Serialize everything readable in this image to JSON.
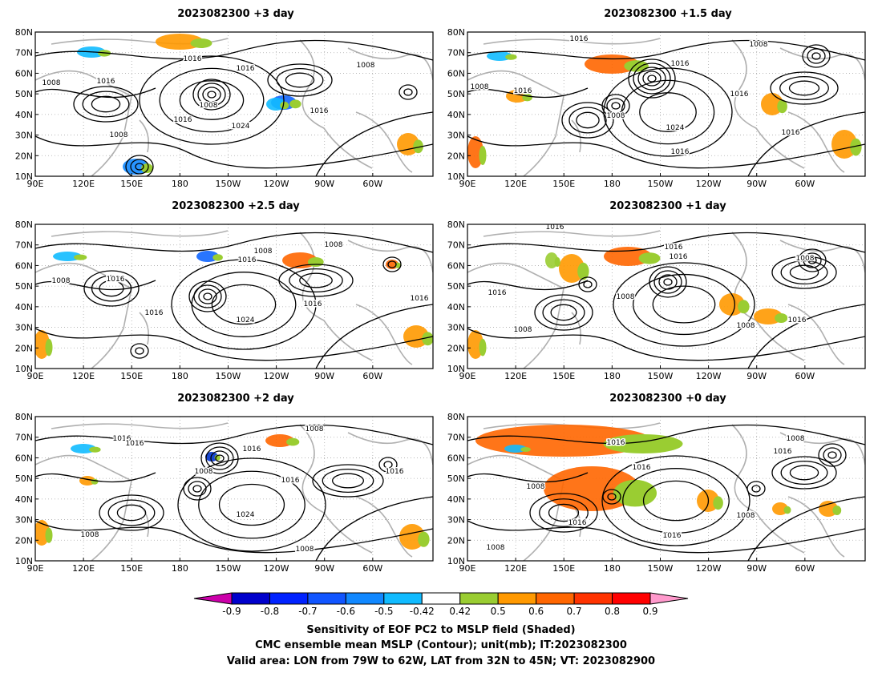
{
  "panels": [
    {
      "title": "2023082300 +3 day",
      "labels": [
        [
          "1016",
          240,
          76
        ],
        [
          "1016",
          132,
          104
        ],
        [
          "1008",
          64,
          106
        ],
        [
          "1016",
          306,
          88
        ],
        [
          "1008",
          456,
          84
        ],
        [
          "1008",
          260,
          134
        ],
        [
          "1016",
          228,
          152
        ],
        [
          "1024",
          300,
          160
        ],
        [
          "1016",
          398,
          141
        ],
        [
          "1008",
          148,
          171
        ]
      ]
    },
    {
      "title": "2023082300 +1.5 day",
      "labels": [
        [
          "1016",
          722,
          51
        ],
        [
          "1008",
          946,
          58
        ],
        [
          "1016",
          848,
          82
        ],
        [
          "1008",
          598,
          111
        ],
        [
          "1016",
          652,
          116
        ],
        [
          "1016",
          922,
          120
        ],
        [
          "1008",
          768,
          147
        ],
        [
          "1024",
          842,
          162
        ],
        [
          "1016",
          986,
          168
        ],
        [
          "1016",
          848,
          192
        ]
      ]
    },
    {
      "title": "2023082300 +2.5 day",
      "labels": [
        [
          "1008",
          328,
          316
        ],
        [
          "1016",
          308,
          327
        ],
        [
          "1008",
          416,
          308
        ],
        [
          "1016",
          144,
          351
        ],
        [
          "1008",
          76,
          353
        ],
        [
          "1016",
          192,
          393
        ],
        [
          "1016",
          390,
          382
        ],
        [
          "1024",
          306,
          402
        ],
        [
          "1016",
          523,
          375
        ]
      ]
    },
    {
      "title": "2023082300 +1 day",
      "labels": [
        [
          "1016",
          692,
          286
        ],
        [
          "1016",
          840,
          311
        ],
        [
          "1016",
          846,
          323
        ],
        [
          "1008",
          1004,
          325
        ],
        [
          "1016",
          620,
          368
        ],
        [
          "1008",
          780,
          373
        ],
        [
          "1008",
          652,
          414
        ],
        [
          "1008",
          930,
          409
        ],
        [
          "1016",
          994,
          402
        ]
      ]
    },
    {
      "title": "2023082300 +2 day",
      "labels": [
        [
          "1008",
          392,
          538
        ],
        [
          "1016",
          152,
          550
        ],
        [
          "1016",
          168,
          556
        ],
        [
          "1016",
          314,
          563
        ],
        [
          "1008",
          254,
          591
        ],
        [
          "1016",
          362,
          602
        ],
        [
          "1016",
          492,
          591
        ],
        [
          "1024",
          306,
          645
        ],
        [
          "1008",
          112,
          670
        ],
        [
          "1008",
          380,
          688
        ]
      ]
    },
    {
      "title": "2023082300 +0 day",
      "labels": [
        [
          "1016",
          768,
          555
        ],
        [
          "1008",
          992,
          550
        ],
        [
          "1016",
          976,
          566
        ],
        [
          "1016",
          800,
          586
        ],
        [
          "1008",
          668,
          610
        ],
        [
          "1016",
          720,
          655
        ],
        [
          "1016",
          838,
          671
        ],
        [
          "1008",
          930,
          646
        ],
        [
          "1008",
          618,
          686
        ]
      ]
    }
  ],
  "axes": {
    "y_labels": [
      "10N",
      "20N",
      "30N",
      "40N",
      "50N",
      "60N",
      "70N",
      "80N"
    ],
    "x_labels": [
      "90E",
      "120E",
      "150E",
      "180",
      "150W",
      "120W",
      "90W",
      "60W"
    ]
  },
  "colorbar": {
    "labels": [
      "-0.9",
      "-0.8",
      "-0.7",
      "-0.6",
      "-0.5",
      "-0.42",
      "0.42",
      "0.5",
      "0.6",
      "0.7",
      "0.8",
      "0.9"
    ],
    "colors": [
      "#cc00aa",
      "#0000cc",
      "#0022ff",
      "#1155ff",
      "#1188ff",
      "#11bbff",
      "#ffffff",
      "#9acd32",
      "#ff9900",
      "#ff6600",
      "#ff3300",
      "#ff0000",
      "#ff99cc"
    ]
  },
  "footer": {
    "line1": "Sensitivity of EOF PC2 to MSLP field (Shaded)",
    "line2": "CMC ensemble mean MSLP (Contour); unit(mb); IT:2023082300",
    "line3": "Valid area: LON from 79W to 62W, LAT from 32N to 45N; VT: 2023082900"
  }
}
